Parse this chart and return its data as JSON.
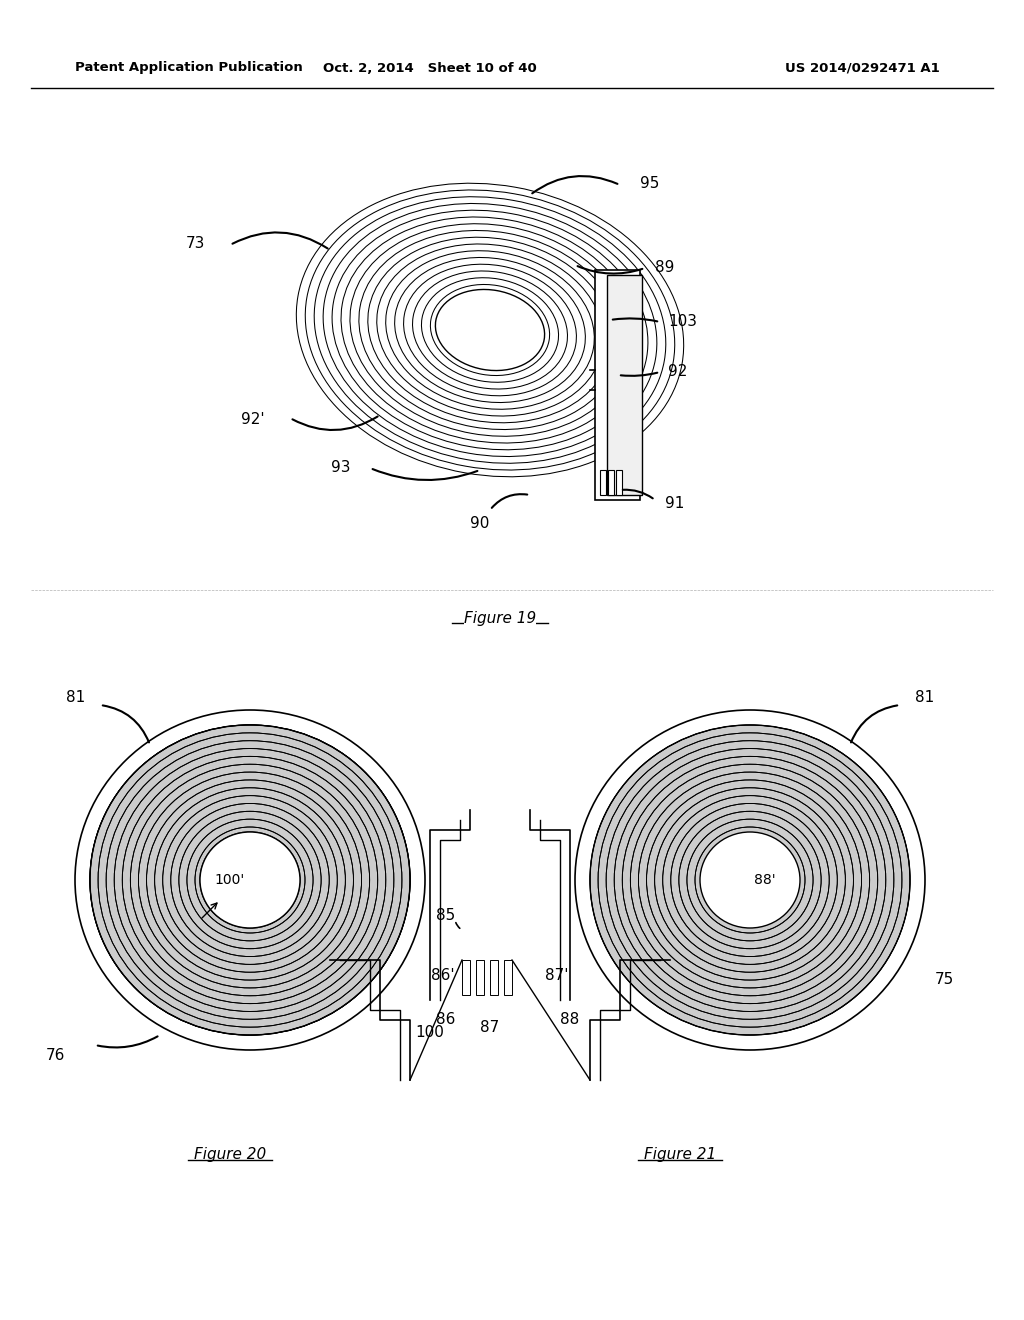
{
  "bg_color": "#ffffff",
  "header_left": "Patent Application Publication",
  "header_mid": "Oct. 2, 2014   Sheet 10 of 40",
  "header_right": "US 2014/0292471 A1",
  "fig19_title": "Figure 19",
  "fig20_title": "Figure 20",
  "fig21_title": "Figure 21",
  "line_color": "#000000",
  "label_color": "#1a1a1a"
}
